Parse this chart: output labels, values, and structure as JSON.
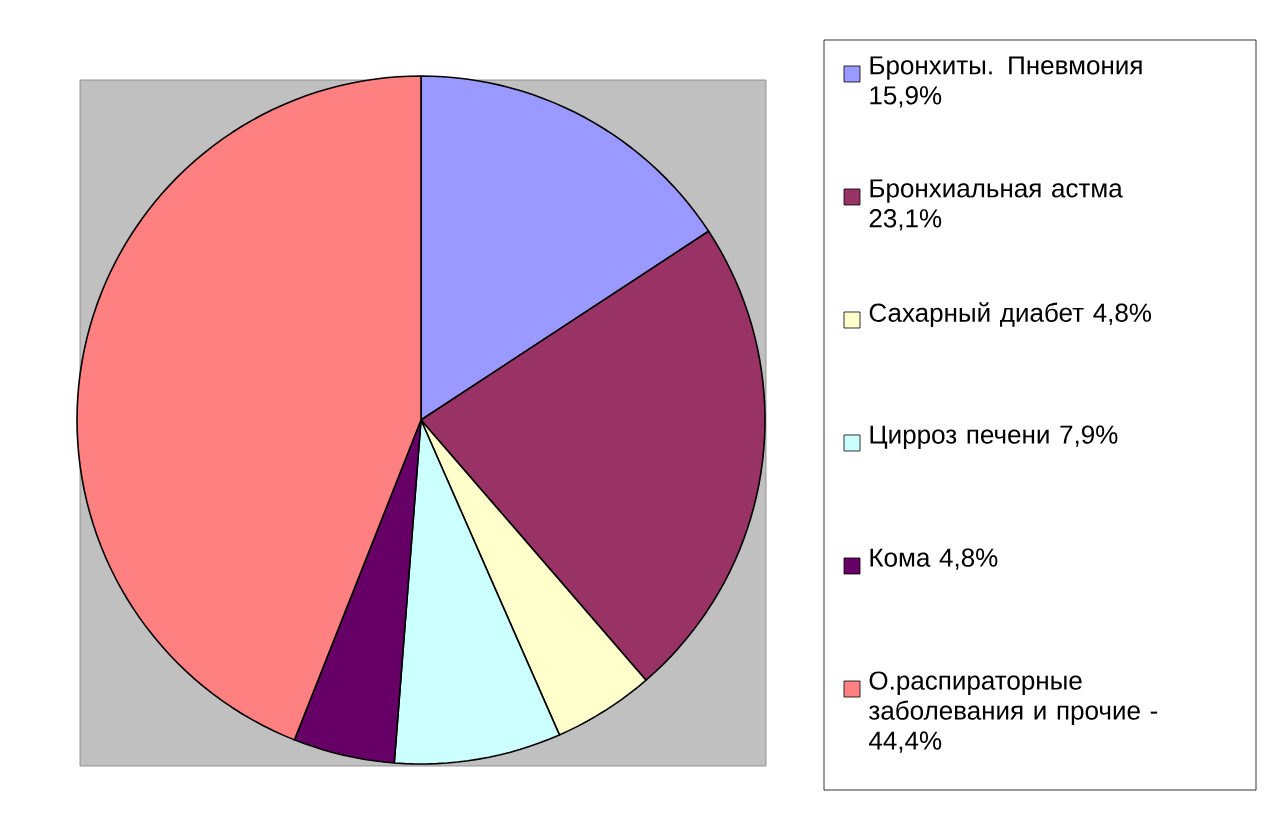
{
  "chart_data": {
    "type": "pie",
    "categories": [
      "Бронхиты. Пневмония 15,9%",
      "Бронхиальная астма 23,1%",
      "Сахарный диабет 4,8%",
      "Цирроз печени 7,9%",
      "Кома 4,8%",
      "О.распираторные заболевания и прочие - 44,4%"
    ],
    "values": [
      15.9,
      23.1,
      4.8,
      7.9,
      4.8,
      44.4
    ],
    "colors": [
      "#9999ff",
      "#993366",
      "#ffffcc",
      "#ccffff",
      "#660066",
      "#ff8080"
    ],
    "legend": "right"
  }
}
